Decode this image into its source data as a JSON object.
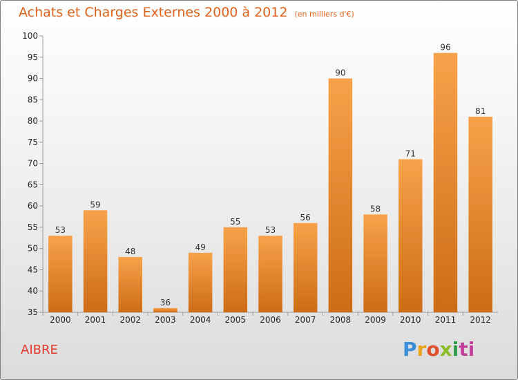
{
  "header": {
    "title": "Achats et Charges Externes 2000 à 2012",
    "unit": "(en milliers d'€)"
  },
  "commune": "AIBRE",
  "logo": {
    "letters": [
      "P",
      "r",
      "o",
      "x",
      "i",
      "t",
      "i"
    ]
  },
  "colors": {
    "title": "#e0611a",
    "bar_light": "#f7a24a",
    "bar_dark": "#cd6c17",
    "commune": "#e23a2e"
  },
  "chart_data": {
    "type": "bar",
    "title": "Achats et Charges Externes 2000 à 2012",
    "subtitle": "(en milliers d'€)",
    "categories": [
      "2000",
      "2001",
      "2002",
      "2003",
      "2004",
      "2005",
      "2006",
      "2007",
      "2008",
      "2009",
      "2010",
      "2011",
      "2012"
    ],
    "values": [
      53,
      59,
      48,
      36,
      49,
      55,
      53,
      56,
      90,
      58,
      71,
      96,
      81
    ],
    "ylim": [
      35,
      100
    ],
    "yticks": [
      35,
      40,
      45,
      50,
      55,
      60,
      65,
      70,
      75,
      80,
      85,
      90,
      95,
      100
    ],
    "grid": false,
    "legend": "none"
  }
}
